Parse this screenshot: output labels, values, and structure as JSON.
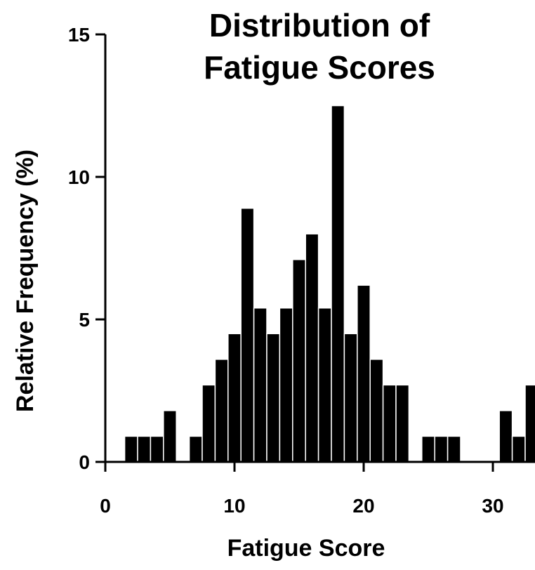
{
  "chart_data": {
    "type": "bar",
    "title_lines": [
      "Distribution of",
      "Fatigue Scores"
    ],
    "xlabel": "Fatigue Score",
    "ylabel": "Relative Frequency (%)",
    "xlim": [
      0,
      33
    ],
    "ylim": [
      0,
      15
    ],
    "x_ticks": [
      0,
      10,
      20,
      30
    ],
    "y_ticks": [
      0,
      5,
      10,
      15
    ],
    "bin_width": 1,
    "grid": false,
    "bar_color": "#000000",
    "bins": [
      {
        "x": 2,
        "value": 0.9
      },
      {
        "x": 3,
        "value": 0.9
      },
      {
        "x": 4,
        "value": 0.9
      },
      {
        "x": 5,
        "value": 1.8
      },
      {
        "x": 7,
        "value": 0.9
      },
      {
        "x": 8,
        "value": 2.7
      },
      {
        "x": 9,
        "value": 3.6
      },
      {
        "x": 10,
        "value": 4.5
      },
      {
        "x": 11,
        "value": 8.9
      },
      {
        "x": 12,
        "value": 5.4
      },
      {
        "x": 13,
        "value": 4.5
      },
      {
        "x": 14,
        "value": 5.4
      },
      {
        "x": 15,
        "value": 7.1
      },
      {
        "x": 16,
        "value": 8.0
      },
      {
        "x": 17,
        "value": 5.4
      },
      {
        "x": 18,
        "value": 12.5
      },
      {
        "x": 19,
        "value": 4.5
      },
      {
        "x": 20,
        "value": 6.2
      },
      {
        "x": 21,
        "value": 3.6
      },
      {
        "x": 22,
        "value": 2.7
      },
      {
        "x": 23,
        "value": 2.7
      },
      {
        "x": 25,
        "value": 0.9
      },
      {
        "x": 26,
        "value": 0.9
      },
      {
        "x": 27,
        "value": 0.9
      },
      {
        "x": 31,
        "value": 1.8
      },
      {
        "x": 32,
        "value": 0.9
      },
      {
        "x": 33,
        "value": 2.7
      }
    ]
  }
}
